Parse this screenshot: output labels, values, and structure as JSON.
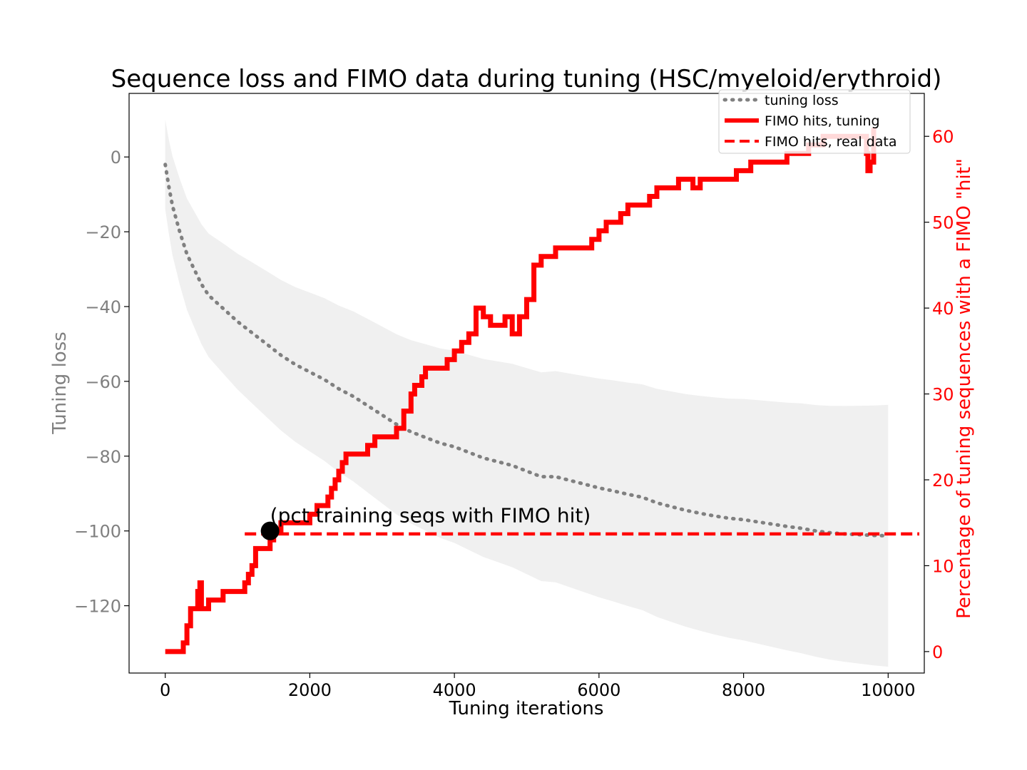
{
  "chart_data": {
    "type": "line",
    "title": "Sequence loss and FIMO data during tuning (HSC/myeloid/erythroid)",
    "xlabel": "Tuning iterations",
    "ylabel_left": "Tuning loss",
    "ylabel_right": "Percentage of tuning sequences with a FIMO \"hit\"",
    "xlim": [
      -500,
      10500
    ],
    "ylim_left": [
      -138,
      17
    ],
    "ylim_right": [
      -2.5,
      65
    ],
    "x_ticks": [
      0,
      2000,
      4000,
      6000,
      8000,
      10000
    ],
    "x_tick_labels": [
      "0",
      "2000",
      "4000",
      "6000",
      "8000",
      "10000"
    ],
    "y_left_ticks": [
      0,
      -20,
      -40,
      -60,
      -80,
      -100,
      -120
    ],
    "y_left_tick_labels": [
      "0",
      "−20",
      "−40",
      "−60",
      "−80",
      "−100",
      "−120"
    ],
    "y_right_ticks": [
      0,
      10,
      20,
      30,
      40,
      50,
      60
    ],
    "y_right_tick_labels": [
      "0",
      "10",
      "20",
      "30",
      "40",
      "50",
      "60"
    ],
    "legend": {
      "placement": "upper-right",
      "entries": [
        "tuning loss",
        "FIMO hits, tuning",
        "FIMO hits, real data"
      ]
    },
    "series": [
      {
        "name": "tuning loss",
        "axis": "left",
        "style": "dotted",
        "color": "#808080",
        "x": [
          0,
          50,
          100,
          200,
          300,
          400,
          500,
          600,
          800,
          1000,
          1200,
          1400,
          1600,
          1800,
          2000,
          2200,
          2400,
          2600,
          2800,
          3000,
          3200,
          3400,
          3600,
          3800,
          4000,
          4200,
          4400,
          4600,
          4800,
          5000,
          5200,
          5400,
          5600,
          5800,
          6000,
          6200,
          6400,
          6600,
          6800,
          7000,
          7200,
          7400,
          7600,
          7800,
          8000,
          8200,
          8400,
          8600,
          8800,
          9000,
          9200,
          9400,
          9600,
          9800,
          10000
        ],
        "y": [
          -2,
          -8,
          -13,
          -20,
          -26,
          -30,
          -34,
          -37,
          -40.5,
          -44,
          -47,
          -50,
          -53,
          -55.5,
          -57.5,
          -59.5,
          -62,
          -64,
          -66.5,
          -69,
          -71.5,
          -73.5,
          -75,
          -76.5,
          -77.5,
          -79,
          -80.5,
          -81.5,
          -82.5,
          -84,
          -85.5,
          -85.5,
          -86.5,
          -87.5,
          -88.5,
          -89.3,
          -90.2,
          -91,
          -92.5,
          -93.5,
          -94.5,
          -95.3,
          -96,
          -96.6,
          -97,
          -97.6,
          -98.2,
          -98.8,
          -99.3,
          -100,
          -100.5,
          -100.8,
          -101,
          -101.2,
          -101.3
        ]
      },
      {
        "name": "FIMO hits, tuning",
        "axis": "right",
        "style": "solid",
        "color": "#ff0000",
        "x": [
          0,
          200,
          250,
          300,
          350,
          400,
          450,
          480,
          500,
          600,
          650,
          700,
          800,
          900,
          1000,
          1100,
          1150,
          1200,
          1250,
          1300,
          1400,
          1450,
          1500,
          1550,
          1600,
          1700,
          1800,
          2000,
          2100,
          2200,
          2250,
          2300,
          2350,
          2400,
          2450,
          2500,
          2600,
          2700,
          2800,
          2900,
          3000,
          3100,
          3200,
          3300,
          3400,
          3450,
          3500,
          3550,
          3600,
          3700,
          3800,
          3900,
          4000,
          4100,
          4200,
          4300,
          4400,
          4500,
          4600,
          4700,
          4800,
          4900,
          5000,
          5100,
          5200,
          5300,
          5400,
          5500,
          5600,
          5700,
          5800,
          5900,
          6000,
          6100,
          6200,
          6300,
          6400,
          6500,
          6600,
          6700,
          6800,
          6900,
          7000,
          7100,
          7200,
          7300,
          7400,
          7500,
          7600,
          7700,
          7800,
          7900,
          8000,
          8100,
          8200,
          8300,
          8400,
          8500,
          8600,
          8700,
          8800,
          8900,
          9000,
          9100,
          9200,
          9300,
          9400,
          9500,
          9600,
          9700,
          9720,
          9750,
          9800
        ],
        "y": [
          0,
          0,
          1,
          3,
          5,
          5,
          7,
          8,
          5,
          6,
          6,
          6,
          7,
          7,
          7,
          8,
          9,
          10,
          12,
          12,
          12,
          13,
          14,
          14,
          15,
          15,
          15,
          16,
          17,
          17,
          18,
          19,
          20,
          21,
          22,
          23,
          23,
          23,
          24,
          25,
          25,
          25,
          26,
          28,
          30,
          31,
          31,
          32,
          33,
          33,
          33,
          34,
          35,
          36,
          37,
          40,
          39,
          38,
          38,
          39,
          37,
          39,
          41,
          45,
          46,
          46,
          47,
          47,
          47,
          47,
          47,
          48,
          49,
          50,
          50,
          51,
          52,
          52,
          52,
          53,
          54,
          54,
          54,
          55,
          55,
          54,
          55,
          55,
          55,
          55,
          55,
          56,
          56,
          57,
          57,
          57,
          57,
          57,
          58,
          58,
          58,
          59,
          59,
          60,
          60,
          60,
          60,
          60,
          60,
          58,
          56,
          57,
          61
        ]
      },
      {
        "name": "FIMO hits, real data",
        "axis": "right",
        "style": "dashed",
        "color": "#ff0000",
        "y": 13.7
      }
    ],
    "annotation": {
      "text": "(pct training seqs with FIMO hit)",
      "x": 1450,
      "y_left": -100,
      "color": "#000000"
    }
  }
}
